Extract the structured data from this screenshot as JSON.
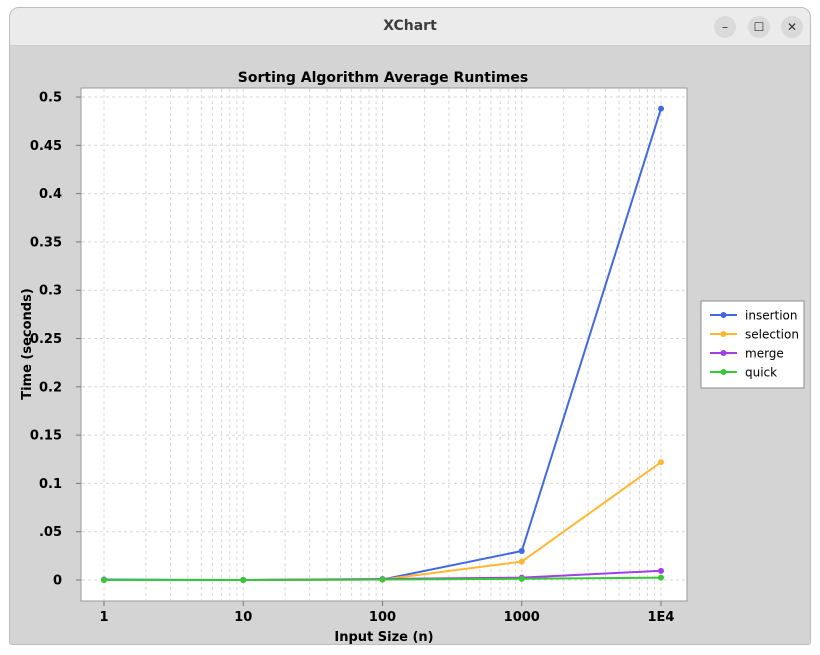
{
  "window": {
    "title": "XChart",
    "buttons": {
      "minimize": "–",
      "maximize": "☐",
      "close": "✕"
    }
  },
  "colors": {
    "insertion": "#4169e1",
    "selection": "#ffb732",
    "merge": "#a23ee8",
    "quick": "#37c837",
    "grid": "#d7d7d7",
    "window_bg": "#d4d4d4"
  },
  "chart_data": {
    "type": "line",
    "title": "Sorting Algorithm Average Runtimes",
    "xlabel": "Input Size (n)",
    "ylabel": "Time (seconds)",
    "x_scale": "log",
    "x_ticks": [
      {
        "value": 1,
        "label": "1"
      },
      {
        "value": 10,
        "label": "10"
      },
      {
        "value": 100,
        "label": "100"
      },
      {
        "value": 1000,
        "label": "1000"
      },
      {
        "value": 10000,
        "label": "1E4"
      }
    ],
    "y_ticks": [
      {
        "value": 0,
        "label": "0"
      },
      {
        "value": 0.05,
        "label": ".05"
      },
      {
        "value": 0.1,
        "label": "0.1"
      },
      {
        "value": 0.15,
        "label": "0.15"
      },
      {
        "value": 0.2,
        "label": "0.2"
      },
      {
        "value": 0.25,
        "label": "0.25"
      },
      {
        "value": 0.3,
        "label": "0.3"
      },
      {
        "value": 0.35,
        "label": "0.35"
      },
      {
        "value": 0.4,
        "label": "0.4"
      },
      {
        "value": 0.45,
        "label": "0.45"
      },
      {
        "value": 0.5,
        "label": "0.5"
      }
    ],
    "xlim": [
      1,
      10000
    ],
    "ylim": [
      -0.02,
      0.5
    ],
    "grid": true,
    "legend_position": "right",
    "x": [
      1,
      10,
      100,
      1000,
      10000
    ],
    "series": [
      {
        "name": "insertion",
        "values": [
          0.0005,
          0.0,
          0.0005,
          0.03,
          0.488
        ]
      },
      {
        "name": "selection",
        "values": [
          0.0,
          0.0,
          0.0005,
          0.019,
          0.122
        ]
      },
      {
        "name": "merge",
        "values": [
          0.0,
          0.0,
          0.001,
          0.0025,
          0.0095
        ]
      },
      {
        "name": "quick",
        "values": [
          0.0,
          0.0,
          0.0005,
          0.0012,
          0.0025
        ]
      }
    ]
  }
}
